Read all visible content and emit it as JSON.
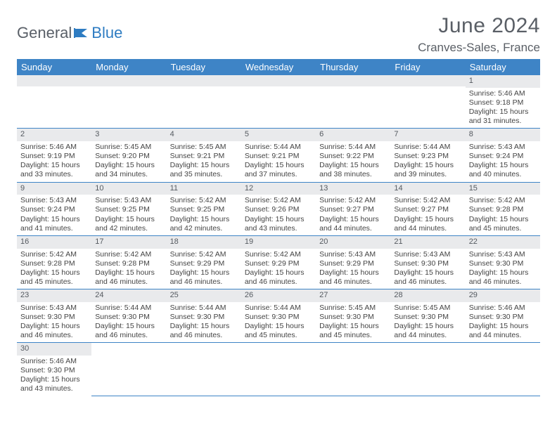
{
  "brand": {
    "part1": "General",
    "part2": "Blue"
  },
  "title": "June 2024",
  "location": "Cranves-Sales, France",
  "colors": {
    "header_bg": "#3e84c6",
    "header_text": "#ffffff",
    "daynum_bg": "#e9eaec",
    "text": "#444444",
    "rule": "#3e84c6",
    "title_color": "#5a5f66"
  },
  "fonts": {
    "title_size_pt": 30,
    "location_size_pt": 17,
    "dayhead_size_pt": 13,
    "cell_size_pt": 10.5
  },
  "day_headers": [
    "Sunday",
    "Monday",
    "Tuesday",
    "Wednesday",
    "Thursday",
    "Friday",
    "Saturday"
  ],
  "weeks": [
    [
      null,
      null,
      null,
      null,
      null,
      null,
      {
        "n": "1",
        "sr": "Sunrise: 5:46 AM",
        "ss": "Sunset: 9:18 PM",
        "d1": "Daylight: 15 hours",
        "d2": "and 31 minutes."
      }
    ],
    [
      {
        "n": "2",
        "sr": "Sunrise: 5:46 AM",
        "ss": "Sunset: 9:19 PM",
        "d1": "Daylight: 15 hours",
        "d2": "and 33 minutes."
      },
      {
        "n": "3",
        "sr": "Sunrise: 5:45 AM",
        "ss": "Sunset: 9:20 PM",
        "d1": "Daylight: 15 hours",
        "d2": "and 34 minutes."
      },
      {
        "n": "4",
        "sr": "Sunrise: 5:45 AM",
        "ss": "Sunset: 9:21 PM",
        "d1": "Daylight: 15 hours",
        "d2": "and 35 minutes."
      },
      {
        "n": "5",
        "sr": "Sunrise: 5:44 AM",
        "ss": "Sunset: 9:21 PM",
        "d1": "Daylight: 15 hours",
        "d2": "and 37 minutes."
      },
      {
        "n": "6",
        "sr": "Sunrise: 5:44 AM",
        "ss": "Sunset: 9:22 PM",
        "d1": "Daylight: 15 hours",
        "d2": "and 38 minutes."
      },
      {
        "n": "7",
        "sr": "Sunrise: 5:44 AM",
        "ss": "Sunset: 9:23 PM",
        "d1": "Daylight: 15 hours",
        "d2": "and 39 minutes."
      },
      {
        "n": "8",
        "sr": "Sunrise: 5:43 AM",
        "ss": "Sunset: 9:24 PM",
        "d1": "Daylight: 15 hours",
        "d2": "and 40 minutes."
      }
    ],
    [
      {
        "n": "9",
        "sr": "Sunrise: 5:43 AM",
        "ss": "Sunset: 9:24 PM",
        "d1": "Daylight: 15 hours",
        "d2": "and 41 minutes."
      },
      {
        "n": "10",
        "sr": "Sunrise: 5:43 AM",
        "ss": "Sunset: 9:25 PM",
        "d1": "Daylight: 15 hours",
        "d2": "and 42 minutes."
      },
      {
        "n": "11",
        "sr": "Sunrise: 5:42 AM",
        "ss": "Sunset: 9:25 PM",
        "d1": "Daylight: 15 hours",
        "d2": "and 42 minutes."
      },
      {
        "n": "12",
        "sr": "Sunrise: 5:42 AM",
        "ss": "Sunset: 9:26 PM",
        "d1": "Daylight: 15 hours",
        "d2": "and 43 minutes."
      },
      {
        "n": "13",
        "sr": "Sunrise: 5:42 AM",
        "ss": "Sunset: 9:27 PM",
        "d1": "Daylight: 15 hours",
        "d2": "and 44 minutes."
      },
      {
        "n": "14",
        "sr": "Sunrise: 5:42 AM",
        "ss": "Sunset: 9:27 PM",
        "d1": "Daylight: 15 hours",
        "d2": "and 44 minutes."
      },
      {
        "n": "15",
        "sr": "Sunrise: 5:42 AM",
        "ss": "Sunset: 9:28 PM",
        "d1": "Daylight: 15 hours",
        "d2": "and 45 minutes."
      }
    ],
    [
      {
        "n": "16",
        "sr": "Sunrise: 5:42 AM",
        "ss": "Sunset: 9:28 PM",
        "d1": "Daylight: 15 hours",
        "d2": "and 45 minutes."
      },
      {
        "n": "17",
        "sr": "Sunrise: 5:42 AM",
        "ss": "Sunset: 9:28 PM",
        "d1": "Daylight: 15 hours",
        "d2": "and 46 minutes."
      },
      {
        "n": "18",
        "sr": "Sunrise: 5:42 AM",
        "ss": "Sunset: 9:29 PM",
        "d1": "Daylight: 15 hours",
        "d2": "and 46 minutes."
      },
      {
        "n": "19",
        "sr": "Sunrise: 5:42 AM",
        "ss": "Sunset: 9:29 PM",
        "d1": "Daylight: 15 hours",
        "d2": "and 46 minutes."
      },
      {
        "n": "20",
        "sr": "Sunrise: 5:43 AM",
        "ss": "Sunset: 9:29 PM",
        "d1": "Daylight: 15 hours",
        "d2": "and 46 minutes."
      },
      {
        "n": "21",
        "sr": "Sunrise: 5:43 AM",
        "ss": "Sunset: 9:30 PM",
        "d1": "Daylight: 15 hours",
        "d2": "and 46 minutes."
      },
      {
        "n": "22",
        "sr": "Sunrise: 5:43 AM",
        "ss": "Sunset: 9:30 PM",
        "d1": "Daylight: 15 hours",
        "d2": "and 46 minutes."
      }
    ],
    [
      {
        "n": "23",
        "sr": "Sunrise: 5:43 AM",
        "ss": "Sunset: 9:30 PM",
        "d1": "Daylight: 15 hours",
        "d2": "and 46 minutes."
      },
      {
        "n": "24",
        "sr": "Sunrise: 5:44 AM",
        "ss": "Sunset: 9:30 PM",
        "d1": "Daylight: 15 hours",
        "d2": "and 46 minutes."
      },
      {
        "n": "25",
        "sr": "Sunrise: 5:44 AM",
        "ss": "Sunset: 9:30 PM",
        "d1": "Daylight: 15 hours",
        "d2": "and 46 minutes."
      },
      {
        "n": "26",
        "sr": "Sunrise: 5:44 AM",
        "ss": "Sunset: 9:30 PM",
        "d1": "Daylight: 15 hours",
        "d2": "and 45 minutes."
      },
      {
        "n": "27",
        "sr": "Sunrise: 5:45 AM",
        "ss": "Sunset: 9:30 PM",
        "d1": "Daylight: 15 hours",
        "d2": "and 45 minutes."
      },
      {
        "n": "28",
        "sr": "Sunrise: 5:45 AM",
        "ss": "Sunset: 9:30 PM",
        "d1": "Daylight: 15 hours",
        "d2": "and 44 minutes."
      },
      {
        "n": "29",
        "sr": "Sunrise: 5:46 AM",
        "ss": "Sunset: 9:30 PM",
        "d1": "Daylight: 15 hours",
        "d2": "and 44 minutes."
      }
    ],
    [
      {
        "n": "30",
        "sr": "Sunrise: 5:46 AM",
        "ss": "Sunset: 9:30 PM",
        "d1": "Daylight: 15 hours",
        "d2": "and 43 minutes."
      },
      null,
      null,
      null,
      null,
      null,
      null
    ]
  ]
}
